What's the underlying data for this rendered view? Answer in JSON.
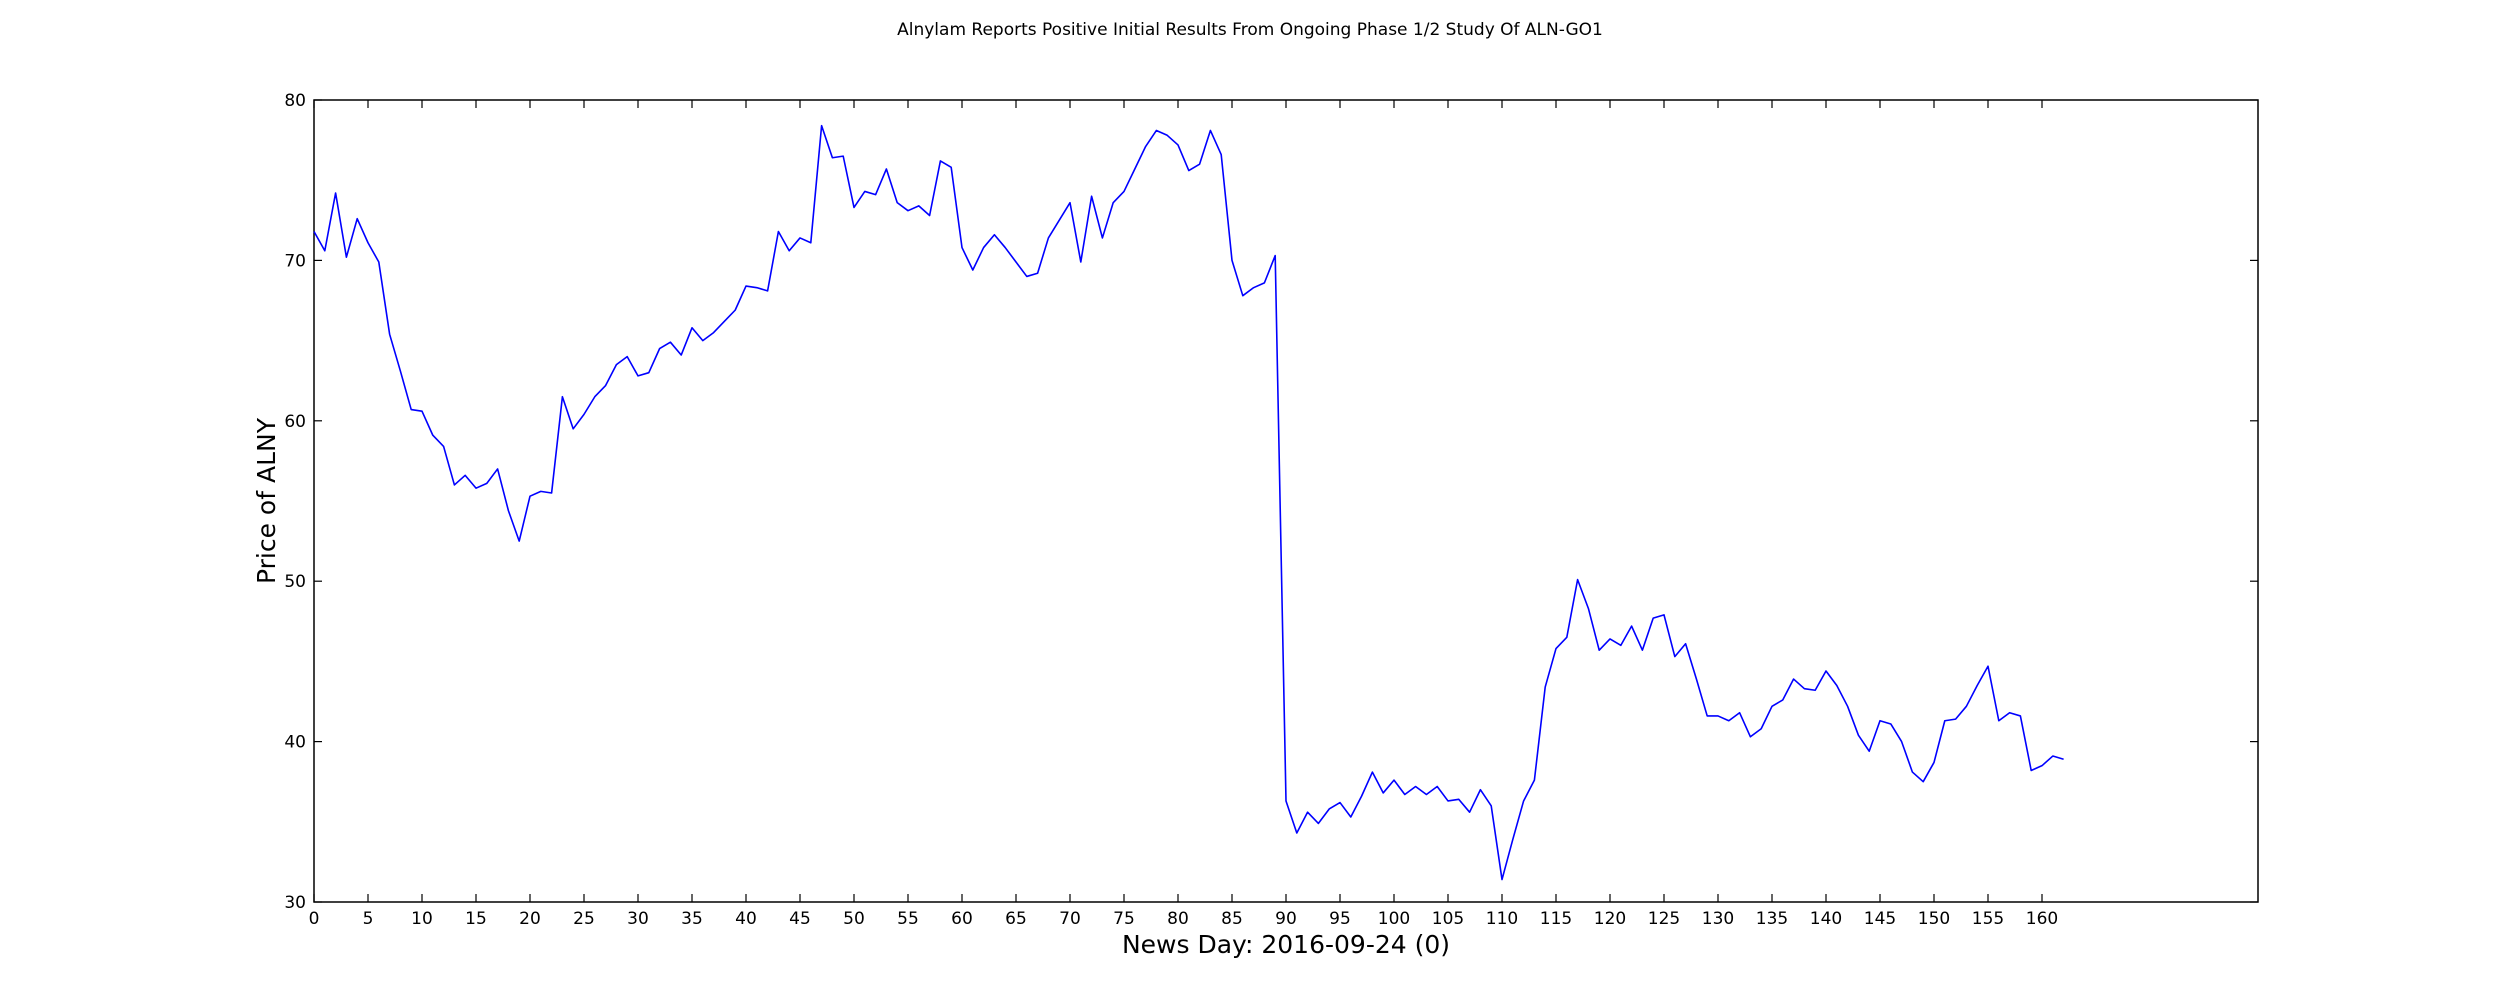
{
  "chart_data": {
    "type": "line",
    "title": "Alnylam Reports Positive Initial Results From Ongoing Phase 1/2 Study Of ALN-GO1",
    "xlabel": "News Day: 2016-09-24 (0)",
    "ylabel": "Price of ALNY",
    "xlim": [
      0,
      180
    ],
    "ylim": [
      30,
      80
    ],
    "x_ticks": [
      0,
      5,
      10,
      15,
      20,
      25,
      30,
      35,
      40,
      45,
      50,
      55,
      60,
      65,
      70,
      75,
      80,
      85,
      90,
      95,
      100,
      105,
      110,
      115,
      120,
      125,
      130,
      135,
      140,
      145,
      150,
      155,
      160
    ],
    "y_ticks": [
      30,
      40,
      50,
      60,
      70,
      80
    ],
    "grid": false,
    "series": [
      {
        "color": "#0000ff",
        "values": [
          71.8,
          70.6,
          74.2,
          70.2,
          72.6,
          71.1,
          69.9,
          65.4,
          63.1,
          60.7,
          60.6,
          59.1,
          58.4,
          56.0,
          56.6,
          55.8,
          56.1,
          57.0,
          54.4,
          52.5,
          55.3,
          55.6,
          55.5,
          61.5,
          59.5,
          60.4,
          61.5,
          62.2,
          63.5,
          64.0,
          62.8,
          63.0,
          64.5,
          64.9,
          64.1,
          65.8,
          65.0,
          65.5,
          66.2,
          66.9,
          68.4,
          68.3,
          68.1,
          71.8,
          70.6,
          71.4,
          71.1,
          78.4,
          76.4,
          76.5,
          73.3,
          74.3,
          74.1,
          75.7,
          73.6,
          73.1,
          73.4,
          72.8,
          76.2,
          75.8,
          70.8,
          69.4,
          70.8,
          71.6,
          70.8,
          69.9,
          69.0,
          69.2,
          71.4,
          72.5,
          73.6,
          69.9,
          74.0,
          71.4,
          73.6,
          74.3,
          75.7,
          77.1,
          78.1,
          77.8,
          77.2,
          75.6,
          76.0,
          78.1,
          76.6,
          70.0,
          67.8,
          68.3,
          68.6,
          70.3,
          36.3,
          34.3,
          35.6,
          34.9,
          35.8,
          36.2,
          35.3,
          36.6,
          38.1,
          36.8,
          37.6,
          36.7,
          37.2,
          36.7,
          37.2,
          36.3,
          36.4,
          35.6,
          37.0,
          36.0,
          31.4,
          33.9,
          36.3,
          37.6,
          43.4,
          45.8,
          46.5,
          50.1,
          48.3,
          45.7,
          46.4,
          46.0,
          47.2,
          45.7,
          47.7,
          47.9,
          45.3,
          46.1,
          43.9,
          41.6,
          41.6,
          41.3,
          41.8,
          40.3,
          40.8,
          42.2,
          42.6,
          43.9,
          43.3,
          43.2,
          44.4,
          43.5,
          42.2,
          40.4,
          39.4,
          41.3,
          41.1,
          40.0,
          38.1,
          37.5,
          38.7,
          41.3,
          41.4,
          42.2,
          43.5,
          44.7,
          41.3,
          41.8,
          41.6,
          38.2,
          38.5,
          39.1,
          38.9
        ]
      }
    ]
  }
}
